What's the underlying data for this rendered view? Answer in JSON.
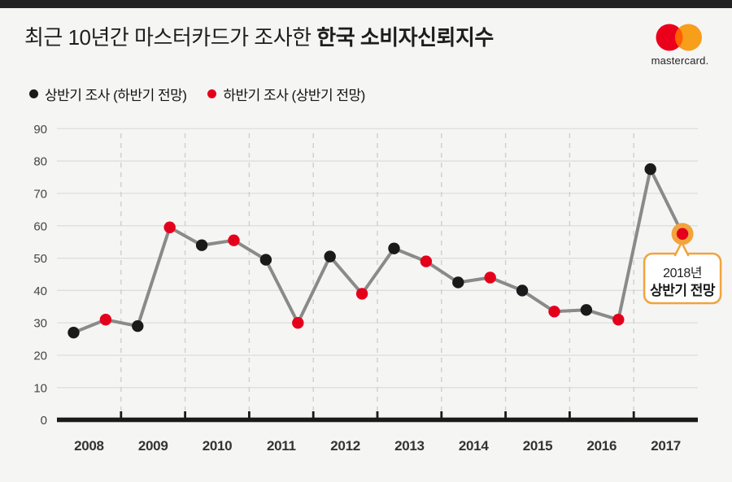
{
  "page": {
    "background": "#f5f5f4",
    "top_bar_color": "#222222"
  },
  "header": {
    "title_regular": "최근 10년간 마스터카드가 조사한 ",
    "title_bold": "한국 소비자신뢰지수",
    "logo": {
      "name": "mastercard-logo",
      "text": "mastercard.",
      "red": "#EB001B",
      "orange": "#F79E1B",
      "overlap": "#FF5F00"
    }
  },
  "legend": {
    "items": [
      {
        "label": "상반기 조사 (하반기 전망)",
        "color": "#1a1a1a"
      },
      {
        "label": "하반기 조사 (상반기 전망)",
        "color": "#E4001B"
      }
    ]
  },
  "chart_data": {
    "type": "line",
    "title": "최근 10년간 마스터카드가 조사한 한국 소비자신뢰지수",
    "categories": [
      "2008",
      "2009",
      "2010",
      "2011",
      "2012",
      "2013",
      "2014",
      "2015",
      "2016",
      "2017"
    ],
    "series": [
      {
        "name": "상반기 조사 (하반기 전망)",
        "color": "#1a1a1a",
        "values": [
          27,
          29,
          54,
          49.5,
          50.5,
          53,
          42.5,
          40,
          34,
          77.5
        ]
      },
      {
        "name": "하반기 조사 (상반기 전망)",
        "color": "#E4001B",
        "values": [
          31,
          59.5,
          55.5,
          30,
          39,
          49,
          44,
          33.5,
          31,
          57.5
        ]
      }
    ],
    "ylim": [
      0,
      90
    ],
    "ytick_step": 10,
    "grid": true,
    "legend_position": "top-left",
    "line_color": "#8a8a8a",
    "gridline_color": "#dcdcdc",
    "dashed_separator_color": "#cfcfcf",
    "axis_color": "#1a1a1a",
    "annotation": {
      "lines": [
        "2018년",
        "상반기 전망"
      ],
      "highlight_color": "#F2A33C",
      "target": {
        "series": 1,
        "index": 9
      }
    }
  }
}
